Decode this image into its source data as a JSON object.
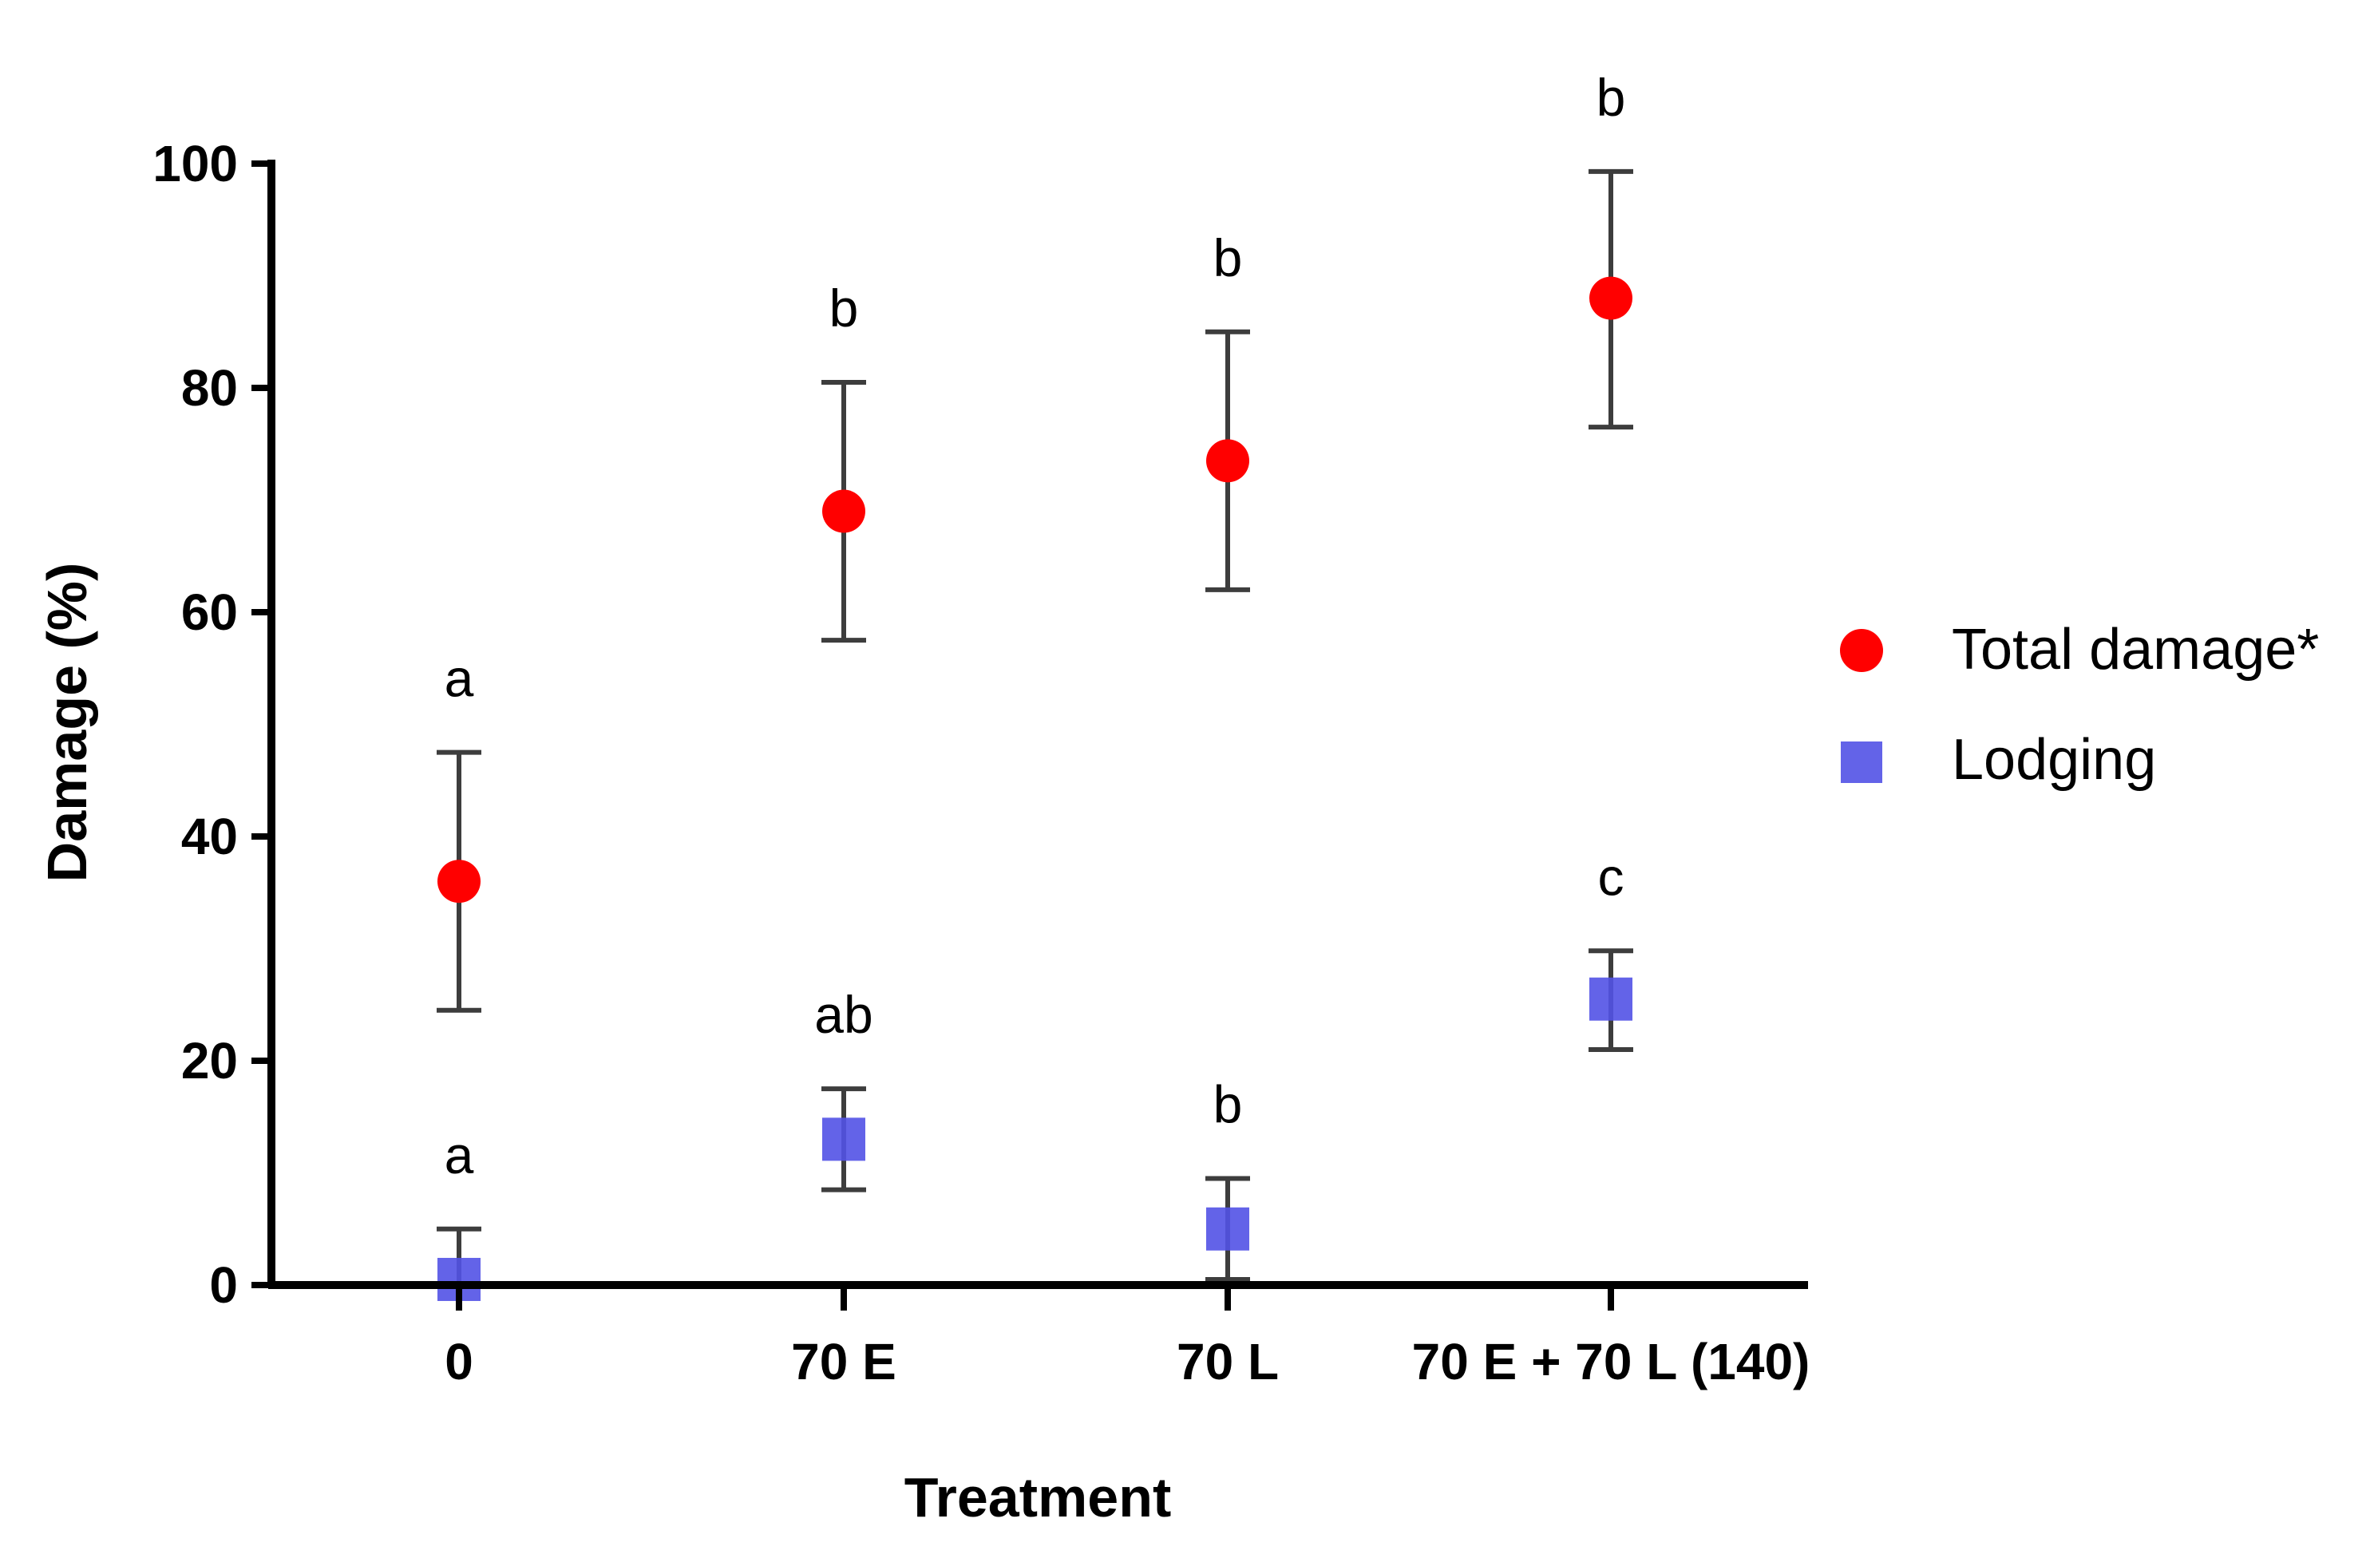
{
  "chart_data": {
    "type": "scatter",
    "xlabel": "Treatment",
    "ylabel": "Damage (%)",
    "categories": [
      "0",
      "70 E",
      "70 L",
      "70 E + 70 L (140)"
    ],
    "ylim": [
      0,
      100
    ],
    "yticks": [
      0,
      20,
      40,
      60,
      80,
      100
    ],
    "legend_position": "right",
    "series": [
      {
        "name": "Total damage*",
        "marker": "circle",
        "color": "#ff0000",
        "values": [
          36,
          69,
          73.5,
          88
        ],
        "err_low": [
          24.5,
          57.5,
          62,
          76.5
        ],
        "err_high": [
          47.5,
          80.5,
          85,
          99.3
        ],
        "letters": [
          "a",
          "b",
          "b",
          "b"
        ]
      },
      {
        "name": "Lodging",
        "marker": "square",
        "color": "#5252e6",
        "values": [
          0.5,
          13,
          5,
          25.5
        ],
        "err_low": [
          0,
          8.5,
          0.5,
          21
        ],
        "err_high": [
          5,
          17.5,
          9.5,
          29.8
        ],
        "letters": [
          "a",
          "ab",
          "b",
          "c"
        ]
      }
    ]
  }
}
